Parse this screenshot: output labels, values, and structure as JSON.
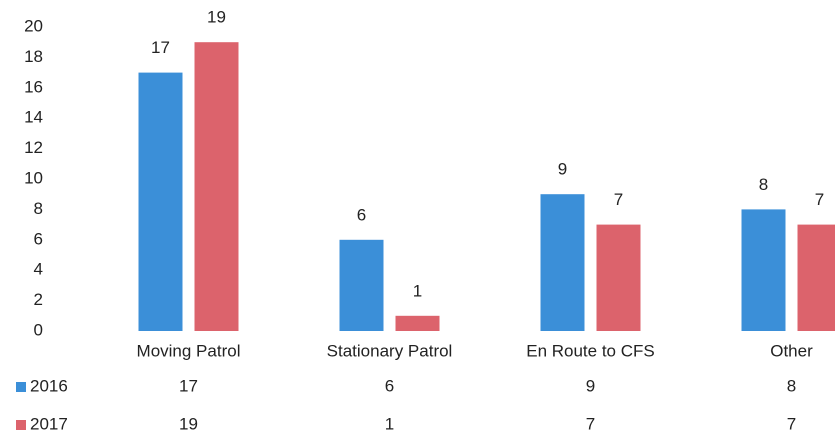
{
  "chart_data": {
    "type": "bar",
    "categories": [
      "Moving Patrol",
      "Stationary Patrol",
      "En Route to CFS",
      "Other"
    ],
    "series": [
      {
        "name": "2016",
        "color": "#3b8fd8",
        "values": [
          17,
          6,
          9,
          8
        ]
      },
      {
        "name": "2017",
        "color": "#dc636c",
        "values": [
          19,
          1,
          7,
          7
        ]
      }
    ],
    "ylim": [
      0,
      20
    ],
    "yticks": [
      0,
      2,
      4,
      6,
      8,
      10,
      12,
      14,
      16,
      18,
      20
    ],
    "grid": false,
    "data_labels": true,
    "data_table": true
  }
}
